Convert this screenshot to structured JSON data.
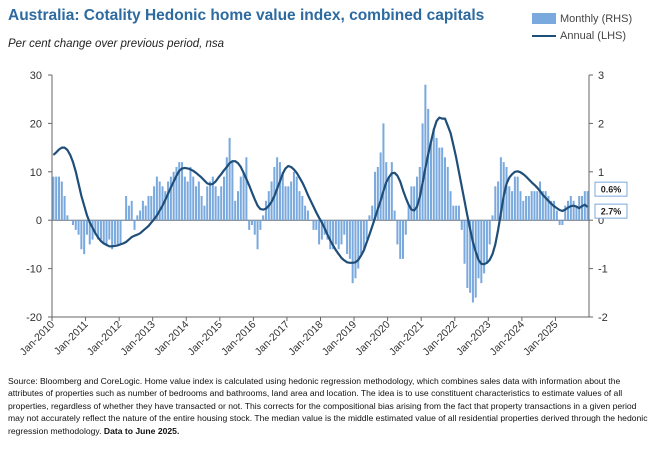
{
  "title": "Australia: Cotality Hedonic home value index, combined capitals",
  "subtitle": "Per cent change over previous period, nsa",
  "legend": {
    "monthly": "Monthly (RHS)",
    "annual": "Annual (LHS)"
  },
  "colors": {
    "bar": "#7aa9de",
    "line": "#1f4e79",
    "title": "#2c6aa0",
    "axis": "#666666"
  },
  "source": {
    "text": "Source: Bloomberg and CoreLogic. Home value index is calculated using hedonic regression methodology, which combines sales data with information about the attributes of properties such as number of bedrooms and bathrooms, land area and location.  The idea is to use constituent characteristics to estimate values of all properties, regardless of whether they have transacted or not.  This corrects for the compositional bias arising from the fact that property transactions in a given period may not accurately reflect the nature of the entire housing stock.  The median value is the middle estimated value of all residential properties derived through the hedonic regression methodology.",
    "bold": "Data to June 2025."
  },
  "chart_data": {
    "type": "bar+line",
    "title": "Australia: Cotality Hedonic home value index, combined capitals",
    "subtitle": "Per cent change over previous period, nsa",
    "x_tick_labels": [
      "Jan-2010",
      "Jan-2011",
      "Jan-2012",
      "Jan-2013",
      "Jan-2014",
      "Jan-2015",
      "Jan-2016",
      "Jan-2017",
      "Jan-2018",
      "Jan-2019",
      "Jan-2020",
      "Jan-2021",
      "Jan-2022",
      "Jan-2023",
      "Jan-2024",
      "Jan-2025"
    ],
    "start": "Jan-2010",
    "end": "Jun-2025",
    "left_axis": {
      "min": -20,
      "max": 30,
      "ticks": [
        -20,
        -10,
        0,
        10,
        20,
        30
      ],
      "label": "Annual (LHS)"
    },
    "right_axis": {
      "min": -2,
      "max": 3,
      "ticks": [
        -2,
        -1,
        0,
        1,
        2,
        3
      ],
      "label": "Monthly (RHS)"
    },
    "annotations": [
      {
        "text": "0.6%",
        "series": "Monthly (RHS)",
        "value": 0.6
      },
      {
        "text": "2.7%",
        "series": "Annual (LHS)",
        "value": 2.7
      }
    ],
    "series": [
      {
        "name": "Monthly (RHS)",
        "type": "bar",
        "axis": "right",
        "values": [
          0.9,
          0.9,
          0.9,
          0.8,
          0.5,
          0.1,
          0.0,
          -0.1,
          -0.2,
          -0.3,
          -0.6,
          -0.7,
          -0.3,
          -0.5,
          -0.4,
          -0.3,
          -0.4,
          -0.4,
          -0.5,
          -0.5,
          -0.4,
          -0.6,
          -0.5,
          -0.5,
          -0.5,
          0.0,
          0.5,
          0.3,
          0.4,
          -0.2,
          0.1,
          0.2,
          0.4,
          0.3,
          0.5,
          0.5,
          0.7,
          0.9,
          0.8,
          0.7,
          0.6,
          0.8,
          0.9,
          1.0,
          1.1,
          1.2,
          1.2,
          0.9,
          0.8,
          1.1,
          0.9,
          0.7,
          0.8,
          0.5,
          0.3,
          0.7,
          0.8,
          0.9,
          0.7,
          0.5,
          0.7,
          0.9,
          1.3,
          1.7,
          1.2,
          0.4,
          0.6,
          0.9,
          1.0,
          1.3,
          -0.2,
          -0.1,
          -0.3,
          -0.6,
          -0.2,
          0.1,
          0.4,
          0.6,
          0.8,
          1.1,
          1.3,
          1.2,
          1.0,
          0.7,
          0.7,
          0.8,
          1.0,
          0.9,
          0.6,
          0.5,
          0.3,
          0.2,
          0.0,
          -0.2,
          -0.2,
          -0.5,
          -0.4,
          -0.3,
          -0.4,
          -0.6,
          -0.6,
          -0.5,
          -0.6,
          -0.5,
          -0.3,
          -0.7,
          -0.8,
          -1.3,
          -1.2,
          -1.0,
          -0.7,
          -0.6,
          -0.4,
          0.1,
          0.3,
          1.0,
          1.1,
          1.4,
          2.0,
          1.2,
          0.9,
          1.2,
          0.2,
          -0.5,
          -0.8,
          -0.8,
          -0.3,
          0.3,
          0.7,
          0.7,
          0.9,
          1.1,
          2.0,
          2.8,
          2.3,
          1.6,
          1.9,
          1.7,
          1.5,
          1.5,
          1.3,
          1.1,
          0.6,
          0.3,
          0.3,
          0.3,
          -0.2,
          -0.9,
          -1.4,
          -1.5,
          -1.7,
          -1.6,
          -1.2,
          -1.3,
          -1.1,
          -0.9,
          -0.5,
          0.1,
          0.7,
          0.8,
          1.3,
          1.2,
          1.1,
          0.7,
          0.6,
          0.9,
          0.9,
          0.6,
          0.4,
          0.5,
          0.5,
          0.6,
          0.6,
          0.6,
          0.8,
          0.6,
          0.6,
          0.5,
          0.4,
          0.4,
          0.2,
          -0.1,
          -0.1,
          0.3,
          0.4,
          0.5,
          0.4,
          0.3,
          0.5,
          0.5,
          0.6,
          0.6
        ]
      },
      {
        "name": "Annual (LHS)",
        "type": "line",
        "axis": "left",
        "values": [
          13.5,
          14.0,
          14.6,
          15.0,
          15.0,
          14.5,
          13.5,
          12.0,
          10.0,
          7.5,
          5.0,
          3.0,
          1.0,
          -0.5,
          -1.6,
          -2.7,
          -3.6,
          -4.3,
          -4.8,
          -5.1,
          -5.4,
          -5.4,
          -5.3,
          -5.2,
          -5.0,
          -4.8,
          -4.5,
          -4.0,
          -3.5,
          -3.2,
          -3.0,
          -2.7,
          -2.2,
          -1.7,
          -1.2,
          -0.5,
          0.2,
          1.0,
          2.0,
          3.0,
          4.2,
          5.5,
          6.8,
          8.0,
          9.2,
          10.2,
          10.7,
          10.8,
          10.7,
          10.5,
          10.2,
          9.8,
          9.3,
          8.8,
          8.2,
          7.6,
          7.4,
          7.5,
          8.0,
          8.8,
          9.5,
          10.3,
          11.0,
          11.8,
          12.2,
          12.2,
          11.8,
          11.0,
          9.8,
          8.5,
          7.2,
          5.7,
          4.3,
          3.0,
          2.3,
          2.2,
          2.4,
          3.0,
          3.8,
          5.0,
          6.5,
          8.0,
          9.6,
          10.7,
          11.2,
          11.0,
          10.5,
          9.8,
          8.8,
          7.8,
          6.6,
          5.2,
          4.0,
          2.8,
          1.6,
          0.5,
          -0.5,
          -1.7,
          -3.0,
          -4.2,
          -5.2,
          -6.2,
          -7.0,
          -7.8,
          -8.3,
          -8.7,
          -8.8,
          -8.8,
          -8.7,
          -8.2,
          -7.3,
          -6.2,
          -4.6,
          -3.0,
          -1.3,
          0.5,
          2.3,
          4.0,
          6.0,
          7.8,
          8.9,
          9.7,
          9.8,
          9.2,
          8.0,
          6.2,
          4.6,
          3.2,
          2.2,
          2.0,
          2.8,
          4.8,
          7.7,
          10.8,
          13.6,
          16.2,
          18.7,
          20.5,
          21.2,
          21.0,
          21.0,
          19.5,
          18.0,
          15.5,
          13.0,
          10.0,
          7.0,
          4.0,
          1.0,
          -1.8,
          -4.5,
          -6.5,
          -8.2,
          -9.0,
          -9.1,
          -8.8,
          -8.2,
          -7.0,
          -5.0,
          -2.0,
          1.5,
          5.0,
          7.5,
          8.8,
          9.5,
          10.0,
          10.1,
          9.9,
          9.5,
          9.0,
          8.4,
          7.8,
          7.3,
          6.7,
          6.0,
          5.2,
          4.6,
          4.0,
          3.4,
          2.9,
          2.5,
          2.1,
          1.9,
          2.2,
          2.6,
          2.9,
          3.0,
          2.8,
          2.5,
          2.9,
          3.2,
          2.7
        ]
      }
    ]
  }
}
